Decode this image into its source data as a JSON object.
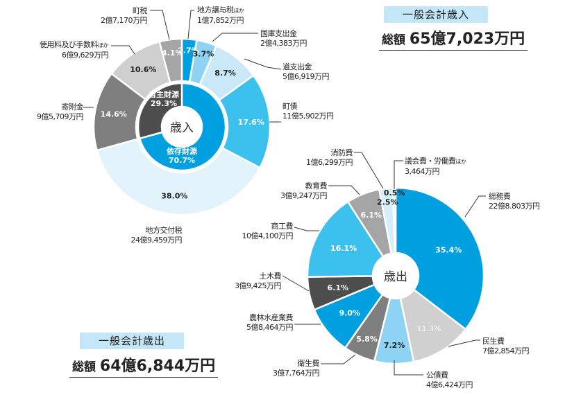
{
  "chart_data": [
    {
      "type": "pie",
      "title": "一般会計歳入",
      "total_label": "総額",
      "total_value": "65億7,023万円",
      "center_label": "歳入",
      "inner_ring": [
        {
          "name": "依存財源",
          "value": 70.7,
          "pct": "70.7%",
          "color": "#00a0e0"
        },
        {
          "name": "自主財源",
          "value": 29.3,
          "pct": "29.3%",
          "color": "#4d4d4d"
        }
      ],
      "slices": [
        {
          "name": "地方譲与税",
          "suffix": "ほか",
          "amount": "1億7,852万円",
          "value": 2.7,
          "pct": "2.7%",
          "color": "#00a0e0"
        },
        {
          "name": "国庫支出金",
          "amount": "2億4,383万円",
          "value": 3.7,
          "pct": "3.7%",
          "color": "#8fd3f4"
        },
        {
          "name": "道支出金",
          "amount": "5億6,919万円",
          "value": 8.7,
          "pct": "8.7%",
          "color": "#c9e9f9"
        },
        {
          "name": "町債",
          "amount": "11億5,902万円",
          "value": 17.6,
          "pct": "17.6%",
          "color": "#3cc0ee"
        },
        {
          "name": "地方交付税",
          "amount": "24億9,459万円",
          "value": 38.0,
          "pct": "38.0%",
          "color": "#e2f3fc"
        },
        {
          "name": "寄附金",
          "amount": "9億5,709万円",
          "value": 14.6,
          "pct": "14.6%",
          "color": "#7f7f7f"
        },
        {
          "name": "使用料及び手数料",
          "suffix": "ほか",
          "amount": "6億9,629万円",
          "value": 10.6,
          "pct": "10.6%",
          "color": "#cfcfcf"
        },
        {
          "name": "町税",
          "amount": "2億7,170万円",
          "value": 4.1,
          "pct": "4.1%",
          "color": "#a5a5a5"
        }
      ]
    },
    {
      "type": "pie",
      "title": "一般会計歳出",
      "total_label": "総額",
      "total_value": "64億6,844万円",
      "center_label": "歳出",
      "slices": [
        {
          "name": "総務費",
          "amount": "22億8.803万円",
          "value": 35.4,
          "pct": "35.4%",
          "color": "#00a0e0"
        },
        {
          "name": "民生費",
          "amount": "7億2,854万円",
          "value": 11.3,
          "pct": "11.3%",
          "color": "#d0d0d0"
        },
        {
          "name": "公債費",
          "amount": "4億6,424万円",
          "value": 7.2,
          "pct": "7.2%",
          "color": "#8fd3f4"
        },
        {
          "name": "衛生費",
          "amount": "3億7,764万円",
          "value": 5.8,
          "pct": "5.8%",
          "color": "#7f7f7f"
        },
        {
          "name": "農林水産業費",
          "amount": "5億8,464万円",
          "value": 9.0,
          "pct": "9.0%",
          "color": "#00a0e0"
        },
        {
          "name": "土木費",
          "amount": "3億9,425万円",
          "value": 6.1,
          "pct": "6.1%",
          "color": "#4d4d4d"
        },
        {
          "name": "商工費",
          "amount": "10億4,100万円",
          "value": 16.1,
          "pct": "16.1%",
          "color": "#3cc0ee"
        },
        {
          "name": "教育費",
          "amount": "3億9,247万円",
          "value": 6.1,
          "pct": "6.1%",
          "color": "#a5a5a5"
        },
        {
          "name": "消防費",
          "amount": "1億6,299万円",
          "value": 2.5,
          "pct": "2.5%",
          "color": "#d6eefa"
        },
        {
          "name": "議会費・労働費",
          "suffix": "ほか",
          "amount": "3,464万円",
          "value": 0.5,
          "pct": "0.5%",
          "color": "#c9e9f9"
        }
      ]
    }
  ]
}
